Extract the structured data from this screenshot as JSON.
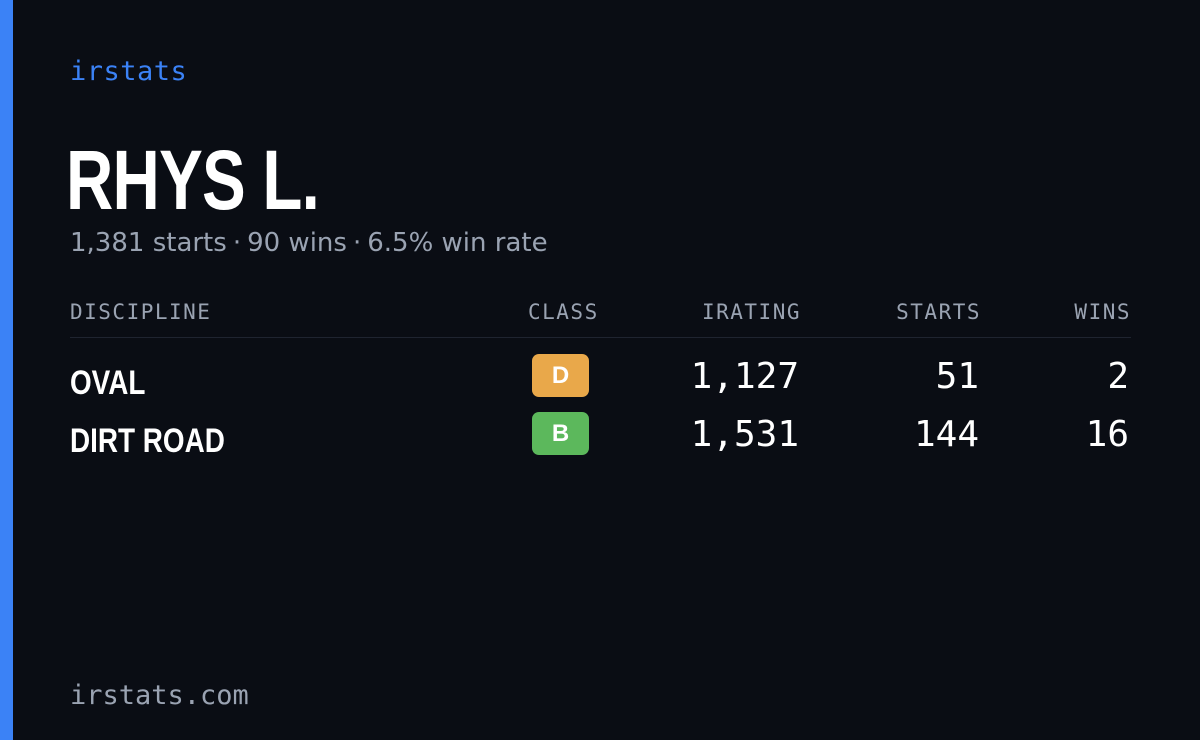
{
  "brand": "irstats",
  "player": {
    "name": "RHYS L.",
    "starts": "1,381 starts",
    "wins": "90 wins",
    "win_rate": "6.5% win rate",
    "separator": "·"
  },
  "table": {
    "headers": {
      "discipline": "DISCIPLINE",
      "class": "CLASS",
      "irating": "IRATING",
      "starts": "STARTS",
      "wins": "WINS"
    },
    "rows": [
      {
        "discipline": "OVAL",
        "class": "D",
        "class_color": "#e9a84a",
        "irating": "1,127",
        "starts": "51",
        "wins": "2"
      },
      {
        "discipline": "DIRT ROAD",
        "class": "B",
        "class_color": "#5cb85c",
        "irating": "1,531",
        "starts": "144",
        "wins": "16"
      }
    ]
  },
  "footer": "irstats.com",
  "colors": {
    "accent": "#3b82f6",
    "background": "#0a0d14",
    "muted_text": "#9aa3b2"
  }
}
